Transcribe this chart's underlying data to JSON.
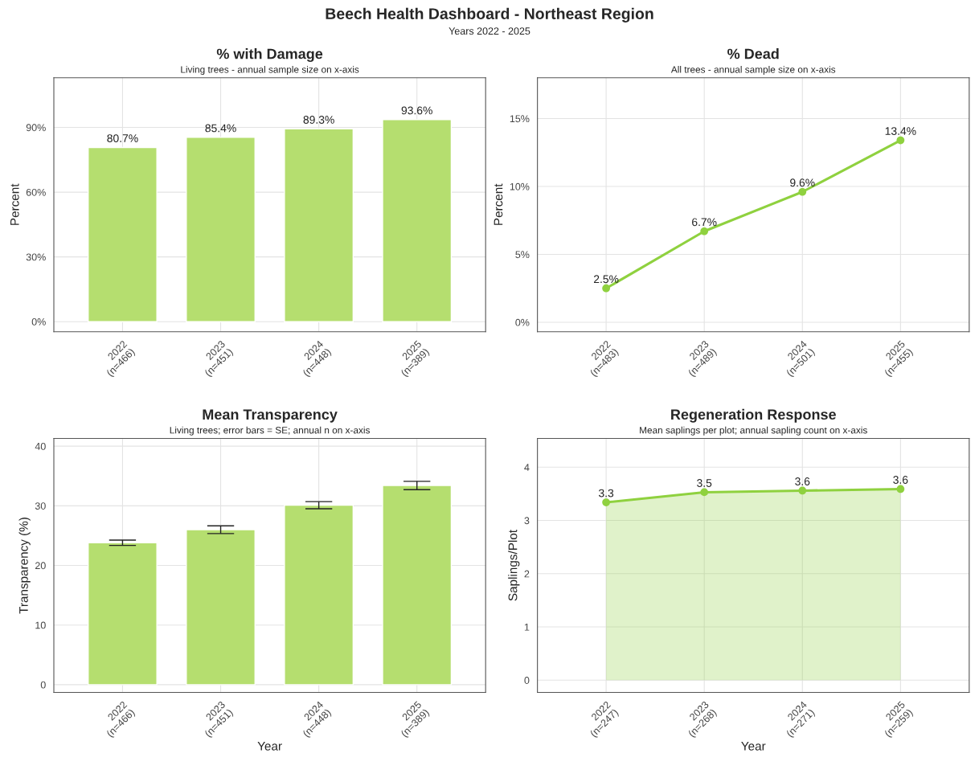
{
  "chart_data": [
    {
      "type": "bar",
      "title": "% with Damage",
      "subtitle": "Living trees - annual sample size on x-axis",
      "ylabel": "Percent",
      "annotations": [
        "Beech Health Dashboard - Northeast Region",
        "Years 2022 - 2025"
      ],
      "categories": [
        "2022\n(n=466)",
        "2023\n(n=451)",
        "2024\n(n=448)",
        "2025\n(n=389)"
      ],
      "values": [
        80.7,
        85.4,
        89.3,
        93.6
      ],
      "color": "#b5de6f",
      "value_labels": [
        "80.7%",
        "85.4%",
        "89.3%",
        "93.6%"
      ],
      "ylim": [
        -4.7,
        113
      ],
      "yticks": [
        {
          "value": 0,
          "label": "0%"
        },
        {
          "value": 30,
          "label": "30%"
        },
        {
          "value": 60,
          "label": "60%"
        },
        {
          "value": 90,
          "label": "90%"
        }
      ],
      "grid": true
    },
    {
      "type": "line",
      "title": "% Dead",
      "subtitle": "All trees - annual sample size on x-axis",
      "ylabel": "Percent",
      "categories": [
        "2022\n(n=483)",
        "2023\n(n=489)",
        "2024\n(n=501)",
        "2025\n(n=455)"
      ],
      "values": [
        2.5,
        6.7,
        9.6,
        13.4
      ],
      "color": "#8fd13f",
      "marker": "circle",
      "value_labels": [
        "2.5%",
        "6.7%",
        "9.6%",
        "13.4%"
      ],
      "ylim": [
        -0.7,
        18
      ],
      "yticks": [
        {
          "value": 0,
          "label": "0%"
        },
        {
          "value": 5,
          "label": "5%"
        },
        {
          "value": 10,
          "label": "10%"
        },
        {
          "value": 15,
          "label": "15%"
        }
      ],
      "grid": true
    },
    {
      "type": "bar",
      "title": "Mean Transparency",
      "subtitle": "Living trees; error bars = SE; annual n on x-axis",
      "xlabel": "Year",
      "ylabel": "Transparency (%)",
      "categories": [
        "2022\n(n=466)",
        "2023\n(n=451)",
        "2024\n(n=448)",
        "2025\n(n=389)"
      ],
      "values": [
        23.8,
        26.0,
        30.1,
        33.4
      ],
      "errors": [
        0.45,
        0.65,
        0.6,
        0.7
      ],
      "color": "#b5de6f",
      "ylim": [
        -1.3,
        41.3
      ],
      "yticks": [
        0,
        10,
        20,
        30,
        40
      ],
      "grid": true
    },
    {
      "type": "area",
      "title": "Regeneration Response",
      "subtitle": "Mean saplings per plot; annual sapling count on x-axis",
      "xlabel": "Year",
      "ylabel": "Saplings/Plot",
      "categories": [
        "2022\n(n=247)",
        "2023\n(n=268)",
        "2024\n(n=271)",
        "2025\n(n=259)"
      ],
      "values": [
        3.34,
        3.53,
        3.56,
        3.59
      ],
      "color": "#8fd13f",
      "marker": "circle",
      "value_labels": [
        "3.3",
        "3.5",
        "3.6",
        "3.6"
      ],
      "ylim": [
        -0.23,
        4.54
      ],
      "yticks": [
        0,
        1,
        2,
        3,
        4
      ],
      "grid": true
    }
  ]
}
